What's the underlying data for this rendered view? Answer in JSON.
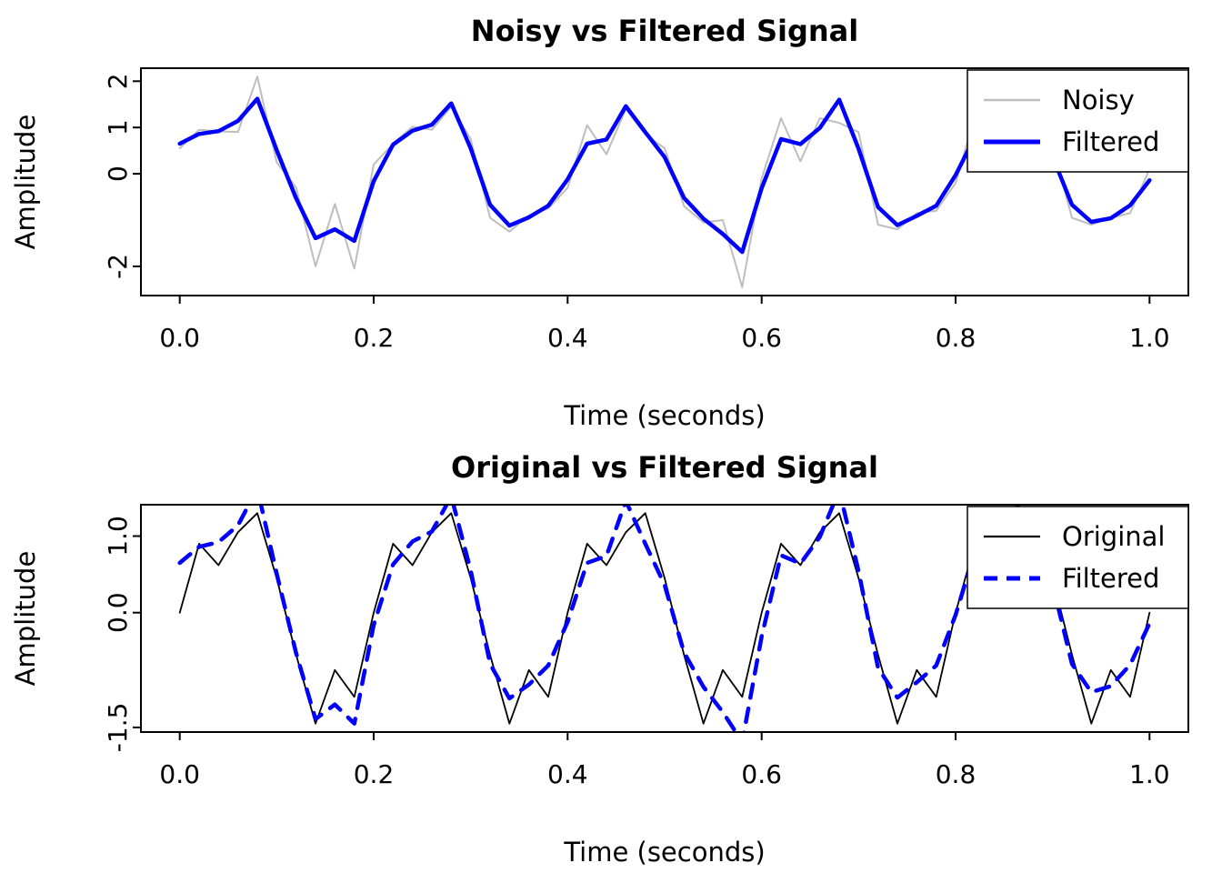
{
  "chart_data": [
    {
      "type": "line",
      "title": "Noisy vs Filtered Signal",
      "xlabel": "Time (seconds)",
      "ylabel": "Amplitude",
      "xlim": [
        -0.04,
        1.04
      ],
      "ylim": [
        -2.63,
        2.28
      ],
      "grid": false,
      "legend": {
        "position": "top-right",
        "entries": [
          "Noisy",
          "Filtered"
        ]
      },
      "xticks": {
        "values": [
          0,
          0.2,
          0.4,
          0.6,
          0.8,
          1
        ],
        "labels": [
          "0.0",
          "0.2",
          "0.4",
          "0.6",
          "0.8",
          "1.0"
        ]
      },
      "yticks": {
        "values": [
          2,
          1,
          0,
          -2
        ],
        "labels": [
          "2",
          "1",
          "0",
          "-2"
        ]
      },
      "x": [
        0,
        0.02,
        0.04,
        0.06,
        0.08,
        0.1,
        0.12,
        0.14,
        0.16,
        0.18,
        0.2,
        0.22,
        0.24,
        0.26,
        0.28,
        0.3,
        0.32,
        0.34,
        0.36,
        0.38,
        0.4,
        0.42,
        0.44,
        0.46,
        0.48,
        0.5,
        0.52,
        0.54,
        0.56,
        0.58,
        0.6,
        0.62,
        0.64,
        0.66,
        0.68,
        0.7,
        0.72,
        0.74,
        0.76,
        0.78,
        0.8,
        0.82,
        0.84,
        0.86,
        0.88,
        0.9,
        0.92,
        0.94,
        0.96,
        0.98,
        1.0
      ],
      "series": [
        {
          "name": "Noisy",
          "color": "#bebebe",
          "width": 2,
          "dash": null,
          "values": [
            0.55,
            0.95,
            0.92,
            0.9,
            2.1,
            0.25,
            -0.3,
            -2.0,
            -0.65,
            -2.05,
            0.2,
            0.65,
            1.02,
            0.95,
            1.45,
            0.75,
            -0.95,
            -1.25,
            -0.9,
            -0.75,
            -0.3,
            1.05,
            0.42,
            1.4,
            0.85,
            0.55,
            -0.7,
            -1.05,
            -1.0,
            -2.45,
            -0.1,
            1.2,
            0.27,
            1.2,
            1.1,
            0.9,
            -1.1,
            -1.2,
            -0.85,
            -0.8,
            -0.2,
            1.25,
            0.47,
            1.25,
            1.0,
            0.6,
            -0.95,
            -1.1,
            -0.95,
            -0.85,
            0.1
          ]
        },
        {
          "name": "Filtered",
          "color": "#0000ff",
          "width": 4.5,
          "dash": null,
          "values": [
            0.65,
            0.86,
            0.92,
            1.14,
            1.62,
            0.51,
            -0.53,
            -1.39,
            -1.2,
            -1.45,
            -0.16,
            0.63,
            0.93,
            1.06,
            1.52,
            0.55,
            -0.67,
            -1.12,
            -0.94,
            -0.69,
            -0.12,
            0.65,
            0.74,
            1.46,
            0.9,
            0.36,
            -0.52,
            -0.97,
            -1.3,
            -1.69,
            -0.31,
            0.75,
            0.64,
            0.99,
            1.6,
            0.54,
            -0.72,
            -1.11,
            -0.91,
            -0.69,
            -0.03,
            0.8,
            0.78,
            1.5,
            0.97,
            0.37,
            -0.67,
            -1.04,
            -0.96,
            -0.68,
            -0.14
          ]
        }
      ]
    },
    {
      "type": "line",
      "title": "Original vs Filtered Signal",
      "xlabel": "Time (seconds)",
      "ylabel": "Amplitude",
      "xlim": [
        -0.04,
        1.04
      ],
      "ylim": [
        -1.56,
        1.41
      ],
      "grid": false,
      "legend": {
        "position": "top-right",
        "entries": [
          "Original",
          "Filtered"
        ]
      },
      "xticks": {
        "values": [
          0,
          0.2,
          0.4,
          0.6,
          0.8,
          1
        ],
        "labels": [
          "0.0",
          "0.2",
          "0.4",
          "0.6",
          "0.8",
          "1.0"
        ]
      },
      "yticks": {
        "values": [
          1,
          0,
          -1.5
        ],
        "labels": [
          "1.0",
          "0.0",
          "-1.5"
        ]
      },
      "x": [
        0,
        0.02,
        0.04,
        0.06,
        0.08,
        0.1,
        0.12,
        0.14,
        0.16,
        0.18,
        0.2,
        0.22,
        0.24,
        0.26,
        0.28,
        0.3,
        0.32,
        0.34,
        0.36,
        0.38,
        0.4,
        0.42,
        0.44,
        0.46,
        0.48,
        0.5,
        0.52,
        0.54,
        0.56,
        0.58,
        0.6,
        0.62,
        0.64,
        0.66,
        0.68,
        0.7,
        0.72,
        0.74,
        0.76,
        0.78,
        0.8,
        0.82,
        0.84,
        0.86,
        0.88,
        0.9,
        0.92,
        0.94,
        0.96,
        0.98,
        1.0
      ],
      "series": [
        {
          "name": "Original",
          "color": "#000000",
          "width": 1.8,
          "dash": null,
          "values": [
            0,
            0.9,
            0.62,
            1.05,
            1.3,
            0.45,
            -0.55,
            -1.45,
            -0.75,
            -1.1,
            0,
            0.9,
            0.62,
            1.05,
            1.3,
            0.45,
            -0.55,
            -1.45,
            -0.75,
            -1.1,
            0,
            0.9,
            0.62,
            1.05,
            1.3,
            0.45,
            -0.55,
            -1.45,
            -0.75,
            -1.1,
            0,
            0.9,
            0.62,
            1.05,
            1.3,
            0.45,
            -0.55,
            -1.45,
            -0.75,
            -1.1,
            0,
            0.9,
            0.62,
            1.05,
            1.3,
            0.45,
            -0.55,
            -1.45,
            -0.75,
            -1.1,
            0
          ]
        },
        {
          "name": "Filtered",
          "color": "#0000ff",
          "width": 4.5,
          "dash": "15 12",
          "values": [
            0.65,
            0.86,
            0.92,
            1.14,
            1.62,
            0.51,
            -0.53,
            -1.39,
            -1.2,
            -1.45,
            -0.16,
            0.63,
            0.93,
            1.06,
            1.52,
            0.55,
            -0.67,
            -1.12,
            -0.94,
            -0.69,
            -0.12,
            0.65,
            0.74,
            1.46,
            0.9,
            0.36,
            -0.52,
            -0.97,
            -1.3,
            -1.69,
            -0.31,
            0.75,
            0.64,
            0.99,
            1.6,
            0.54,
            -0.72,
            -1.11,
            -0.91,
            -0.69,
            -0.03,
            0.8,
            0.78,
            1.5,
            0.97,
            0.37,
            -0.67,
            -1.04,
            -0.96,
            -0.68,
            -0.14
          ]
        }
      ]
    }
  ]
}
